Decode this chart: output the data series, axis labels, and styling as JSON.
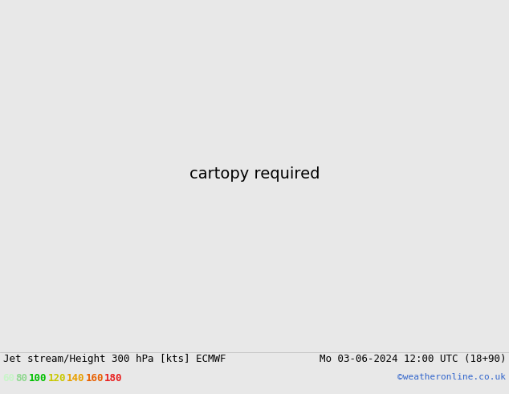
{
  "title_left": "Jet stream/Height 300 hPa [kts] ECMWF",
  "title_right": "Mo 03-06-2024 12:00 UTC (18+90)",
  "credit": "©weatheronline.co.uk",
  "legend_values": [
    60,
    80,
    100,
    120,
    140,
    160,
    180
  ],
  "legend_colors": [
    "#c8f5c8",
    "#90d890",
    "#00c000",
    "#c8c800",
    "#e8a000",
    "#e86000",
    "#e82020"
  ],
  "bg_color": "#e8e8e8",
  "ocean_color": "#e0e0e0",
  "land_color": "#c8f0c8",
  "border_color": "#aaaaaa",
  "jet_colors": {
    "lv1": "#c8f5c8",
    "lv2": "#90d890",
    "lv3": "#38b838",
    "lv4": "#c8c800",
    "lv5": "#e8a000",
    "lv6": "#e86000"
  },
  "contour_color": "#000000",
  "text_color": "#000000",
  "title_fontsize": 9,
  "legend_fontsize": 9,
  "map_extent": [
    70,
    200,
    -15,
    65
  ]
}
